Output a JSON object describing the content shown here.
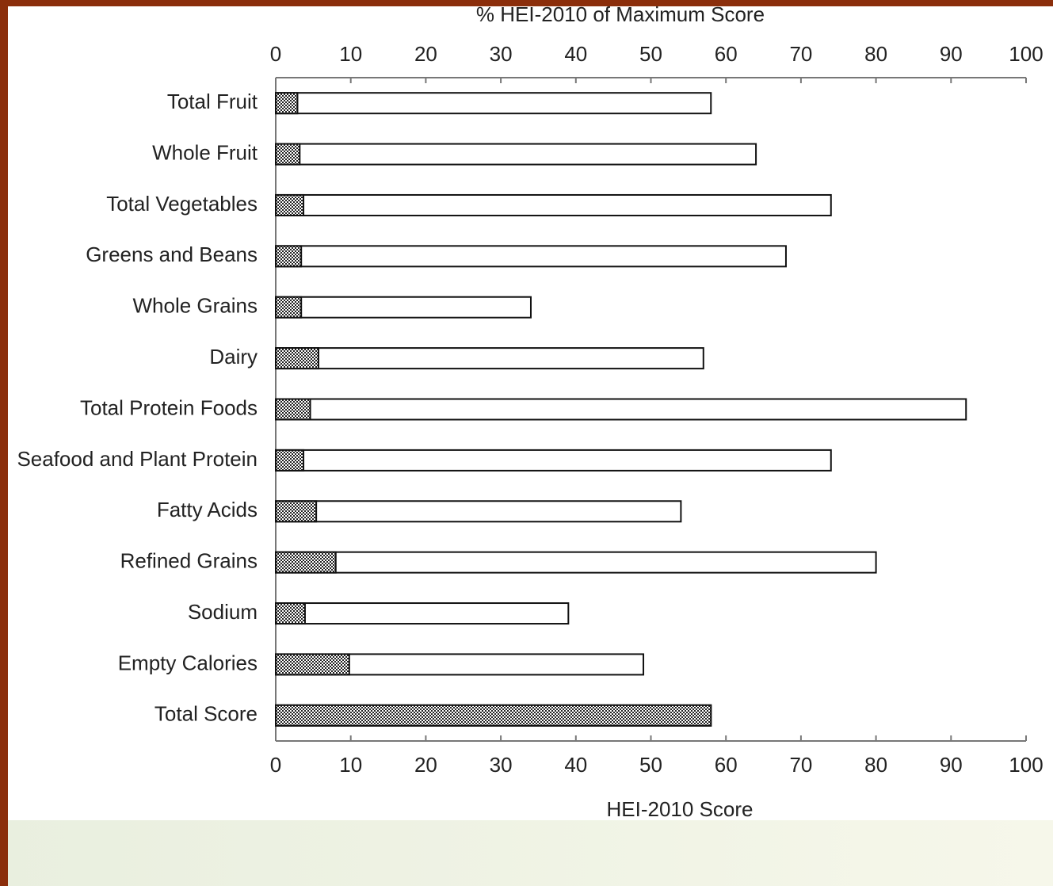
{
  "chart_data": {
    "type": "bar",
    "title": "% HEI-2010 of Maximum Score",
    "x_label": "HEI-2010 Score",
    "categories": [
      "Total Fruit",
      "Whole Fruit",
      "Total Vegetables",
      "Greens and Beans",
      "Whole Grains",
      "Dairy",
      "Total Protein Foods",
      "Seafood and Plant Protein",
      "Fatty Acids",
      "Refined Grains",
      "Sodium",
      "Empty Calories",
      "Total Score"
    ],
    "series": [
      {
        "color": "#ffffff",
        "axis": "x2",
        "values": [
          58,
          64,
          74,
          68,
          34,
          57,
          92,
          74,
          54,
          80,
          39,
          49,
          58
        ]
      },
      {
        "color": "#222222",
        "values": [
          2.9,
          3.2,
          3.7,
          3.4,
          3.4,
          5.7,
          4.6,
          3.7,
          5.4,
          8.0,
          3.9,
          9.8,
          58
        ]
      }
    ],
    "xlim": [
      0,
      100
    ],
    "xticks": [
      0,
      10,
      20,
      30,
      40,
      50,
      60,
      70,
      80,
      90,
      100
    ],
    "x2lim": [
      0,
      100
    ],
    "x2ticks": [
      0,
      10,
      20,
      30,
      40,
      50,
      60,
      70,
      80,
      90,
      100
    ]
  }
}
